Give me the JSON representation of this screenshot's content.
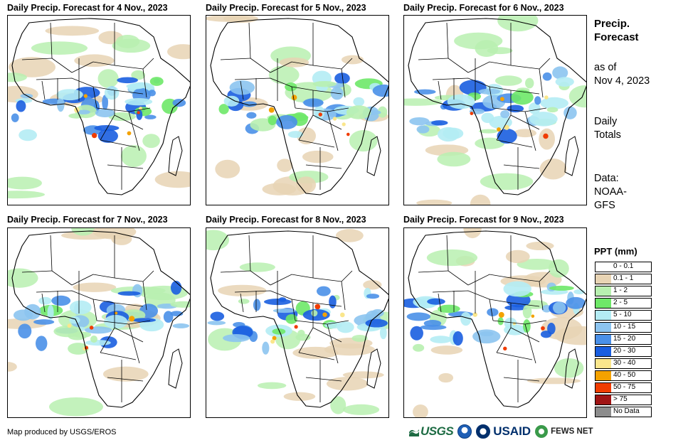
{
  "maps": [
    {
      "title": "Daily Precip. Forecast for 4 Nov., 2023"
    },
    {
      "title": "Daily Precip. Forecast for 5 Nov., 2023"
    },
    {
      "title": "Daily Precip. Forecast for 6 Nov., 2023"
    },
    {
      "title": "Daily Precip. Forecast for 7 Nov., 2023"
    },
    {
      "title": "Daily Precip. Forecast for 8 Nov., 2023"
    },
    {
      "title": "Daily Precip. Forecast for 9 Nov., 2023"
    }
  ],
  "side": {
    "title_line1": "Precip.",
    "title_line2": "Forecast",
    "asof_line1": "as of",
    "asof_line2": "Nov 4, 2023",
    "daily_line1": "Daily",
    "daily_line2": "Totals",
    "data_line1": "Data:",
    "data_line2": "NOAA-",
    "data_line3": "GFS"
  },
  "legend": {
    "title": "PPT (mm)",
    "items": [
      {
        "label": "0 - 0.1",
        "color": "#ffffff"
      },
      {
        "label": "0.1 - 1",
        "color": "#e8d4b4"
      },
      {
        "label": "1 - 2",
        "color": "#b8f0b0"
      },
      {
        "label": "2 - 5",
        "color": "#6ee868"
      },
      {
        "label": "5 - 10",
        "color": "#b4ecf4"
      },
      {
        "label": "10 - 15",
        "color": "#8cc4f0"
      },
      {
        "label": "15 - 20",
        "color": "#4a90e8"
      },
      {
        "label": "20 - 30",
        "color": "#1a5ee0"
      },
      {
        "label": "30 - 40",
        "color": "#fae68c"
      },
      {
        "label": "40 - 50",
        "color": "#f4a200"
      },
      {
        "label": "50 - 75",
        "color": "#f03c00"
      },
      {
        "label": "> 75",
        "color": "#a01414"
      },
      {
        "label": "No Data",
        "color": "#8c8c8c"
      }
    ]
  },
  "footer": {
    "credit": "Map produced by USGS/EROS",
    "logo_usgs": "USGS",
    "logo_usaid": "USAID",
    "logo_fews": "FEWS NET"
  }
}
